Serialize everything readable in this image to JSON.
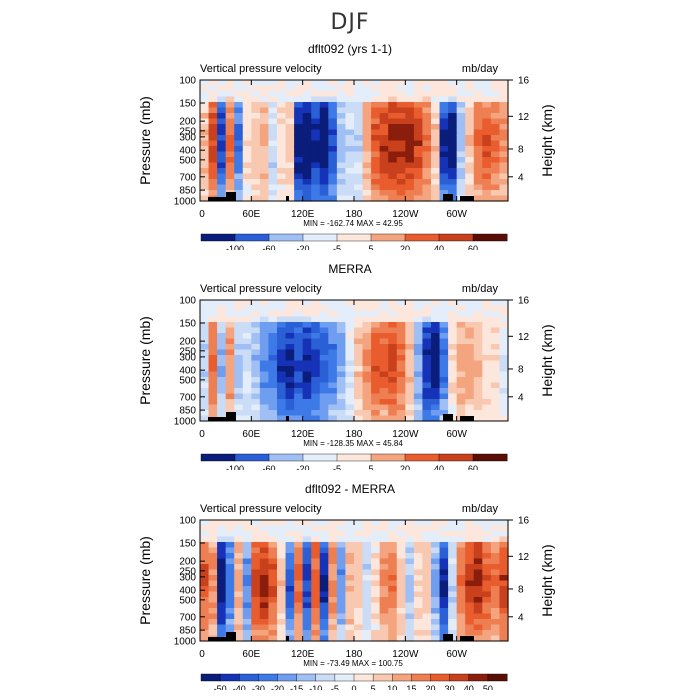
{
  "page_title": "DJF",
  "colors": {
    "negative_scale": [
      "#0a1d7a",
      "#1633b8",
      "#2a5fd6",
      "#3d7ae8",
      "#6f9ef0",
      "#9fbff5",
      "#cbdcf7",
      "#e4eefb"
    ],
    "positive_scale": [
      "#fde7dc",
      "#f9c8b0",
      "#f4a57f",
      "#ee7f53",
      "#e85c2e",
      "#c8401c",
      "#8a1d0c",
      "#5a0d05"
    ]
  },
  "chart_data": [
    {
      "type": "heatmap",
      "title": "dflt092 (yrs 1-1)",
      "left_label": "Vertical pressure velocity",
      "right_label": "mb/day",
      "ylabel": "Pressure (mb)",
      "y2label": "Height (km)",
      "xticks": [
        "0",
        "60E",
        "120E",
        "180",
        "120W",
        "60W"
      ],
      "yticks": [
        "100",
        "150",
        "200",
        "250",
        "300",
        "400",
        "500",
        "700",
        "850",
        "1000"
      ],
      "y2ticks": [
        "16",
        "12",
        "8",
        "4"
      ],
      "stats": "MIN = -162.74   MAX = 42.95",
      "colorbar_labels": [
        "-100",
        "-60",
        "-20",
        "-5",
        "5",
        "20",
        "40",
        "60"
      ],
      "ylim": [
        1000,
        100
      ],
      "xlim": [
        0,
        360
      ],
      "profile": [
        0.2,
        0.7,
        -0.8,
        0.5,
        -0.6,
        0.1,
        0.2,
        0.3,
        -0.2,
        0.1,
        0.2,
        -1.0,
        -1.2,
        -0.9,
        -1.1,
        -0.8,
        -0.3,
        -0.2,
        -0.2,
        0.3,
        0.6,
        0.7,
        0.8,
        0.8,
        0.8,
        0.7,
        0.5,
        0.2,
        -0.9,
        -1.0,
        -0.3,
        0.2,
        0.5,
        0.6,
        0.5,
        0.4
      ]
    },
    {
      "type": "heatmap",
      "title": "MERRA",
      "left_label": "Vertical pressure velocity",
      "right_label": "mb/day",
      "ylabel": "Pressure (mb)",
      "y2label": "Height (km)",
      "xticks": [
        "0",
        "60E",
        "120E",
        "180",
        "120W",
        "60W"
      ],
      "yticks": [
        "100",
        "150",
        "200",
        "250",
        "300",
        "400",
        "500",
        "700",
        "850",
        "1000"
      ],
      "y2ticks": [
        "16",
        "12",
        "8",
        "4"
      ],
      "stats": "MIN = -128.35   MAX = 45.84",
      "colorbar_labels": [
        "-100",
        "-60",
        "-20",
        "-5",
        "5",
        "20",
        "40",
        "60"
      ],
      "ylim": [
        1000,
        100
      ],
      "xlim": [
        0,
        360
      ],
      "profile": [
        -0.2,
        0.5,
        -0.4,
        0.4,
        -0.3,
        -0.2,
        -0.3,
        -0.5,
        -0.6,
        -0.8,
        -0.9,
        -0.8,
        -0.9,
        -0.8,
        -0.7,
        -0.6,
        -0.4,
        -0.1,
        0.2,
        0.4,
        0.6,
        0.6,
        0.7,
        0.5,
        0.2,
        -0.4,
        -0.9,
        -1.0,
        -0.6,
        0.1,
        0.3,
        0.3,
        0.2,
        0.1,
        0.1,
        -0.1
      ]
    },
    {
      "type": "heatmap",
      "title": "dflt092 - MERRA",
      "left_label": "Vertical pressure velocity",
      "right_label": "mb/day",
      "ylabel": "Pressure (mb)",
      "y2label": "Height (km)",
      "xticks": [
        "0",
        "60E",
        "120E",
        "180",
        "120W",
        "60W"
      ],
      "yticks": [
        "100",
        "150",
        "200",
        "250",
        "300",
        "400",
        "500",
        "700",
        "850",
        "1000"
      ],
      "y2ticks": [
        "16",
        "12",
        "8",
        "4"
      ],
      "stats": "MIN = -73.49   MAX = 100.75",
      "colorbar_labels": [
        "-50",
        "-40",
        "-30",
        "-20",
        "-15",
        "-10",
        "-5",
        "0",
        "5",
        "10",
        "15",
        "20",
        "30",
        "40",
        "50"
      ],
      "ylim": [
        1000,
        100
      ],
      "xlim": [
        0,
        360
      ],
      "profile": [
        0.6,
        0.4,
        -1.0,
        -0.6,
        0.3,
        -0.5,
        0.7,
        0.8,
        0.6,
        0.2,
        -0.7,
        0.5,
        -0.8,
        0.6,
        -0.9,
        0.4,
        -0.5,
        0.3,
        0.2,
        -0.2,
        0.1,
        0.4,
        0.5,
        0.2,
        -0.3,
        0.1,
        0.2,
        -0.4,
        -0.9,
        -0.2,
        0.5,
        0.7,
        0.8,
        0.6,
        0.5,
        0.7
      ]
    }
  ]
}
